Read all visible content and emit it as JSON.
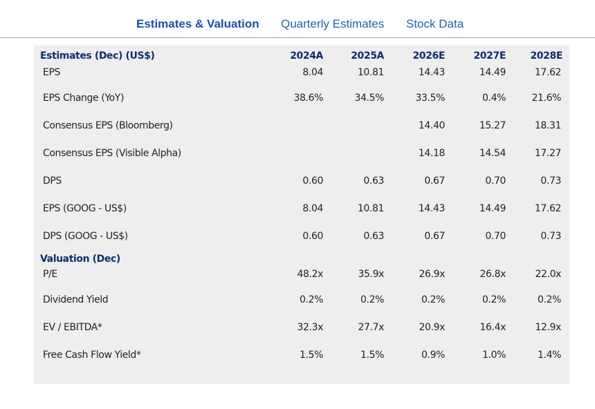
{
  "tabs": [
    {
      "label": "Estimates & Valuation",
      "active": true
    },
    {
      "label": "Quarterly Estimates",
      "active": false
    },
    {
      "label": "Stock Data",
      "active": false
    }
  ],
  "table": {
    "header": {
      "label": "Estimates (Dec) (US$)",
      "columns": [
        "2024A",
        "2025A",
        "2026E",
        "2027E",
        "2028E"
      ]
    },
    "estimates_rows": [
      {
        "label": "EPS",
        "values": [
          "8.04",
          "10.81",
          "14.43",
          "14.49",
          "17.62"
        ]
      },
      {
        "label": "EPS Change (YoY)",
        "values": [
          "38.6%",
          "34.5%",
          "33.5%",
          "0.4%",
          "21.6%"
        ]
      },
      {
        "label": "Consensus EPS (Bloomberg)",
        "values": [
          "",
          "",
          "14.40",
          "15.27",
          "18.31"
        ]
      },
      {
        "label": "Consensus EPS (Visible Alpha)",
        "values": [
          "",
          "",
          "14.18",
          "14.54",
          "17.27"
        ]
      },
      {
        "label": "DPS",
        "values": [
          "0.60",
          "0.63",
          "0.67",
          "0.70",
          "0.73"
        ]
      },
      {
        "label": "EPS (GOOG - US$)",
        "values": [
          "8.04",
          "10.81",
          "14.43",
          "14.49",
          "17.62"
        ]
      },
      {
        "label": "DPS (GOOG - US$)",
        "values": [
          "0.60",
          "0.63",
          "0.67",
          "0.70",
          "0.73"
        ]
      }
    ],
    "valuation_header": "Valuation (Dec)",
    "valuation_rows": [
      {
        "label": "P/E",
        "values": [
          "48.2x",
          "35.9x",
          "26.9x",
          "26.8x",
          "22.0x"
        ]
      },
      {
        "label": "Dividend Yield",
        "values": [
          "0.2%",
          "0.2%",
          "0.2%",
          "0.2%",
          "0.2%"
        ]
      },
      {
        "label": "EV / EBITDA*",
        "values": [
          "32.3x",
          "27.7x",
          "20.9x",
          "16.4x",
          "12.9x"
        ]
      },
      {
        "label": "Free Cash Flow Yield*",
        "values": [
          "1.5%",
          "1.5%",
          "0.9%",
          "1.0%",
          "1.4%"
        ]
      }
    ]
  },
  "colors": {
    "tab_text": "#1f5fbf",
    "header_text": "#0d2d6e",
    "panel_bg": "#eeeeee"
  }
}
